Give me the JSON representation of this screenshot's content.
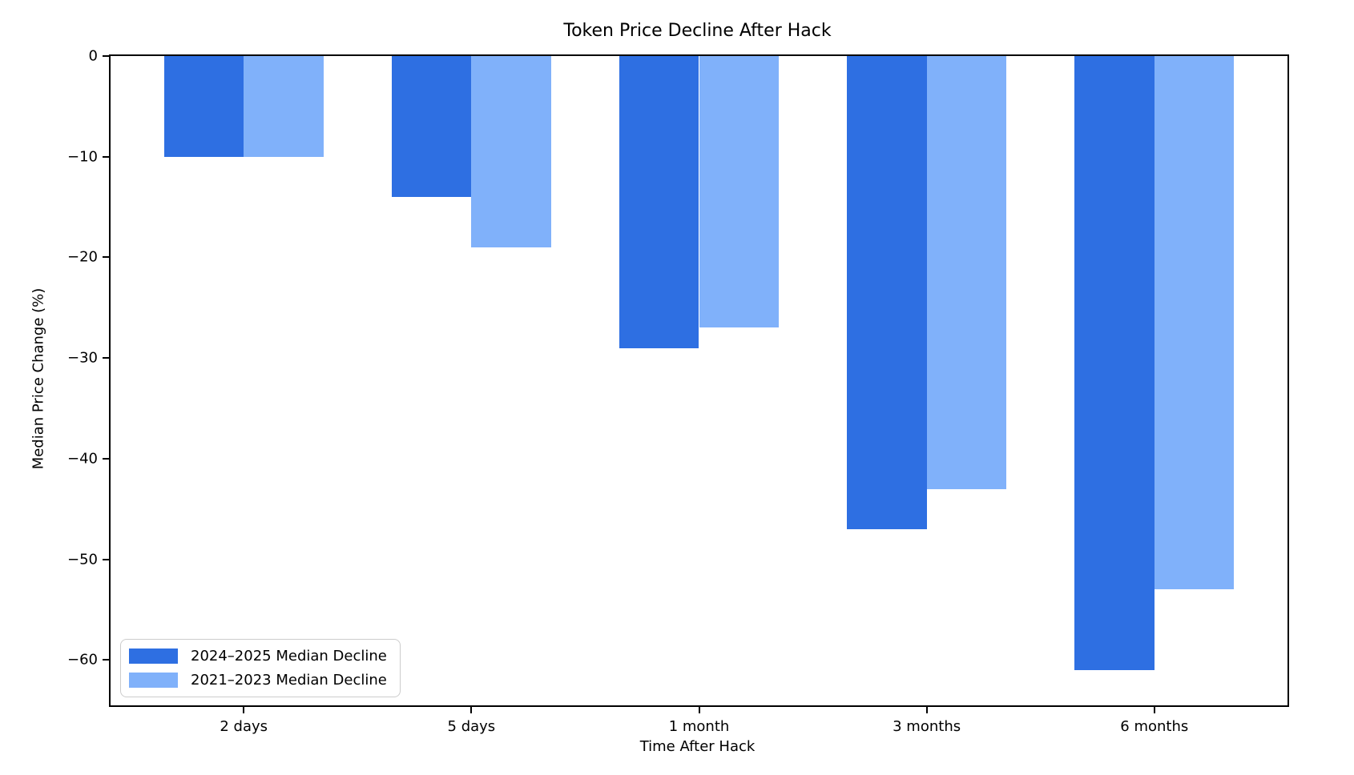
{
  "chart_data": {
    "type": "bar",
    "title": "Token Price Decline After Hack",
    "xlabel": "Time After Hack",
    "ylabel": "Median Price Change (%)",
    "categories": [
      "2 days",
      "5 days",
      "1 month",
      "3 months",
      "6 months"
    ],
    "series": [
      {
        "name": "2024–2025 Median Decline",
        "color": "#2e6fe2",
        "values": [
          -10,
          -14,
          -29,
          -47,
          -61
        ]
      },
      {
        "name": "2021–2023 Median Decline",
        "color": "#80b1fa",
        "values": [
          -10,
          -19,
          -27,
          -43,
          -53
        ]
      }
    ],
    "bar_width": 0.35,
    "xlim": [
      -0.585,
      4.585
    ],
    "ylim": [
      -64.5,
      0
    ],
    "yticks": [
      0,
      -10,
      -20,
      -30,
      -40,
      -50,
      -60
    ],
    "ytick_labels": [
      "0",
      "−10",
      "−20",
      "−30",
      "−40",
      "−50",
      "−60"
    ],
    "grid": false,
    "legend_position": "lower left",
    "axis_color": "#000000",
    "background_color": "#ffffff"
  }
}
